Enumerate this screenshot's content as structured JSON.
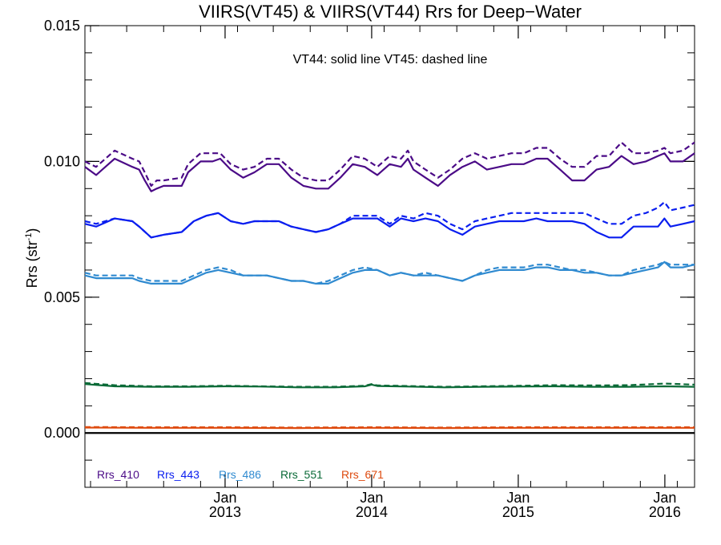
{
  "chart_data": {
    "type": "line",
    "title": "VIIRS(VT45) & VIIRS(VT44)  Rrs for Deep−Water",
    "ylabel": "Rrs (str",
    "ylabel_sup": "-1",
    "ylabel_close": ")",
    "annotation": "VT44: solid line   VT45: dashed line",
    "ylim": [
      -0.002,
      0.015
    ],
    "xlim": [
      "2012-01-18",
      "2016-03-15"
    ],
    "grid": false,
    "legend_position": "bottom-left",
    "y_ticks": [
      {
        "value": 0.0,
        "label": "0.000"
      },
      {
        "value": 0.005,
        "label": "0.005"
      },
      {
        "value": 0.01,
        "label": "0.010"
      },
      {
        "value": 0.015,
        "label": "0.015"
      }
    ],
    "y_minor_step": 0.001,
    "x_ticks": [
      {
        "date": "2013-01-01",
        "label": "Jan",
        "year": "2013"
      },
      {
        "date": "2014-01-01",
        "label": "Jan",
        "year": "2014"
      },
      {
        "date": "2015-01-01",
        "label": "Jan",
        "year": "2015"
      },
      {
        "date": "2016-01-01",
        "label": "Jan",
        "year": "2016"
      }
    ],
    "zero_line": 0.0,
    "series": [
      {
        "name": "Rrs_410",
        "color": "#4b0b87",
        "solid": {
          "x": [
            "2012-01-18",
            "2012-02-15",
            "2012-04-01",
            "2012-05-15",
            "2012-06-01",
            "2012-06-15",
            "2012-07-01",
            "2012-07-15",
            "2012-08-01",
            "2012-09-15",
            "2012-10-01",
            "2012-11-01",
            "2012-12-01",
            "2012-12-20",
            "2013-01-15",
            "2013-02-15",
            "2013-03-15",
            "2013-04-15",
            "2013-05-15",
            "2013-06-15",
            "2013-07-15",
            "2013-08-15",
            "2013-09-15",
            "2013-10-15",
            "2013-11-15",
            "2013-12-15",
            "2014-01-15",
            "2014-02-15",
            "2014-03-15",
            "2014-04-01",
            "2014-04-15",
            "2014-05-15",
            "2014-06-15",
            "2014-07-15",
            "2014-08-15",
            "2014-09-15",
            "2014-10-15",
            "2014-11-15",
            "2014-12-15",
            "2015-01-15",
            "2015-02-15",
            "2015-03-15",
            "2015-04-15",
            "2015-05-15",
            "2015-06-15",
            "2015-07-15",
            "2015-08-15",
            "2015-09-15",
            "2015-10-15",
            "2015-11-15",
            "2015-12-15",
            "2015-12-31",
            "2016-01-15",
            "2016-02-15",
            "2016-03-15"
          ],
          "y": [
            0.0098,
            0.0095,
            0.0101,
            0.0098,
            0.0097,
            0.0093,
            0.0089,
            0.009,
            0.0091,
            0.0091,
            0.0096,
            0.01,
            0.01,
            0.0101,
            0.0097,
            0.0094,
            0.0096,
            0.0099,
            0.0099,
            0.0094,
            0.0091,
            0.009,
            0.009,
            0.0094,
            0.0099,
            0.0098,
            0.0095,
            0.0099,
            0.0098,
            0.0101,
            0.0097,
            0.0094,
            0.0091,
            0.0095,
            0.0098,
            0.01,
            0.0097,
            0.0098,
            0.0099,
            0.0099,
            0.0101,
            0.0101,
            0.0097,
            0.0093,
            0.0093,
            0.0097,
            0.0098,
            0.0102,
            0.0099,
            0.01,
            0.0102,
            0.0103,
            0.01,
            0.01,
            0.0103
          ]
        },
        "dashed": {
          "x": [
            "2012-01-18",
            "2012-02-15",
            "2012-04-01",
            "2012-05-15",
            "2012-06-01",
            "2012-06-15",
            "2012-07-01",
            "2012-07-15",
            "2012-08-01",
            "2012-09-15",
            "2012-10-01",
            "2012-11-01",
            "2012-12-01",
            "2012-12-20",
            "2013-01-15",
            "2013-02-15",
            "2013-03-15",
            "2013-04-15",
            "2013-05-15",
            "2013-06-15",
            "2013-07-15",
            "2013-08-15",
            "2013-09-15",
            "2013-10-15",
            "2013-11-15",
            "2013-12-15",
            "2014-01-15",
            "2014-02-15",
            "2014-03-15",
            "2014-04-01",
            "2014-04-15",
            "2014-05-15",
            "2014-06-15",
            "2014-07-15",
            "2014-08-15",
            "2014-09-15",
            "2014-10-15",
            "2014-11-15",
            "2014-12-15",
            "2015-01-15",
            "2015-02-15",
            "2015-03-15",
            "2015-04-15",
            "2015-05-15",
            "2015-06-15",
            "2015-07-15",
            "2015-08-15",
            "2015-09-15",
            "2015-10-15",
            "2015-11-15",
            "2015-12-15",
            "2015-12-31",
            "2016-01-15",
            "2016-02-15",
            "2016-03-15"
          ],
          "y": [
            0.01,
            0.0098,
            0.0104,
            0.0101,
            0.01,
            0.0096,
            0.0091,
            0.0093,
            0.0093,
            0.0094,
            0.0099,
            0.0103,
            0.0103,
            0.0103,
            0.0099,
            0.0097,
            0.0098,
            0.0101,
            0.0101,
            0.0097,
            0.0094,
            0.0093,
            0.0093,
            0.0097,
            0.0102,
            0.0101,
            0.0098,
            0.0102,
            0.0101,
            0.0104,
            0.01,
            0.0097,
            0.0094,
            0.0097,
            0.0101,
            0.0103,
            0.0101,
            0.0102,
            0.0103,
            0.0103,
            0.0105,
            0.0105,
            0.0101,
            0.0098,
            0.0098,
            0.0102,
            0.0102,
            0.0107,
            0.0103,
            0.0103,
            0.0104,
            0.0105,
            0.0103,
            0.0104,
            0.0107
          ]
        }
      },
      {
        "name": "Rrs_443",
        "color": "#0a1eef",
        "solid": {
          "x": [
            "2012-01-18",
            "2012-02-15",
            "2012-04-01",
            "2012-05-15",
            "2012-06-01",
            "2012-07-01",
            "2012-08-01",
            "2012-09-15",
            "2012-10-15",
            "2012-11-15",
            "2012-12-15",
            "2013-01-15",
            "2013-02-15",
            "2013-03-15",
            "2013-04-15",
            "2013-05-15",
            "2013-06-15",
            "2013-07-15",
            "2013-08-15",
            "2013-09-15",
            "2013-10-15",
            "2013-11-15",
            "2013-12-15",
            "2014-01-15",
            "2014-02-15",
            "2014-03-15",
            "2014-04-15",
            "2014-05-15",
            "2014-06-15",
            "2014-07-15",
            "2014-08-15",
            "2014-09-15",
            "2014-10-15",
            "2014-11-15",
            "2014-12-15",
            "2015-01-15",
            "2015-02-15",
            "2015-03-15",
            "2015-04-15",
            "2015-05-15",
            "2015-06-15",
            "2015-07-15",
            "2015-08-15",
            "2015-09-15",
            "2015-10-15",
            "2015-11-15",
            "2015-12-15",
            "2015-12-31",
            "2016-01-15",
            "2016-02-15",
            "2016-03-15"
          ],
          "y": [
            0.0077,
            0.0076,
            0.0079,
            0.0078,
            0.0076,
            0.0072,
            0.0073,
            0.0074,
            0.0078,
            0.008,
            0.0081,
            0.0078,
            0.0077,
            0.0078,
            0.0078,
            0.0078,
            0.0076,
            0.0075,
            0.0074,
            0.0075,
            0.0077,
            0.0079,
            0.0079,
            0.0079,
            0.0076,
            0.0079,
            0.0078,
            0.0079,
            0.0078,
            0.0075,
            0.0073,
            0.0076,
            0.0077,
            0.0078,
            0.0078,
            0.0078,
            0.0079,
            0.0078,
            0.0078,
            0.0078,
            0.0077,
            0.0074,
            0.0072,
            0.0072,
            0.0076,
            0.0076,
            0.0076,
            0.0079,
            0.0076,
            0.0077,
            0.0078
          ]
        },
        "dashed": {
          "x": [
            "2012-01-18",
            "2012-02-15",
            "2012-04-01",
            "2012-05-15",
            "2012-06-01",
            "2012-07-01",
            "2012-08-01",
            "2012-09-15",
            "2012-10-15",
            "2012-11-15",
            "2012-12-15",
            "2013-01-15",
            "2013-02-15",
            "2013-03-15",
            "2013-04-15",
            "2013-05-15",
            "2013-06-15",
            "2013-07-15",
            "2013-08-15",
            "2013-09-15",
            "2013-10-15",
            "2013-11-15",
            "2013-12-15",
            "2014-01-15",
            "2014-02-15",
            "2014-03-15",
            "2014-04-15",
            "2014-05-15",
            "2014-06-15",
            "2014-07-15",
            "2014-08-15",
            "2014-09-15",
            "2014-10-15",
            "2014-11-15",
            "2014-12-15",
            "2015-01-15",
            "2015-02-15",
            "2015-03-15",
            "2015-04-15",
            "2015-05-15",
            "2015-06-15",
            "2015-07-15",
            "2015-08-15",
            "2015-09-15",
            "2015-10-15",
            "2015-11-15",
            "2015-12-15",
            "2015-12-31",
            "2016-01-15",
            "2016-02-15",
            "2016-03-15"
          ],
          "y": [
            0.0078,
            0.0077,
            0.0079,
            0.0078,
            0.0076,
            0.0072,
            0.0073,
            0.0074,
            0.0078,
            0.008,
            0.0081,
            0.0078,
            0.0077,
            0.0078,
            0.0078,
            0.0078,
            0.0076,
            0.0075,
            0.0074,
            0.0075,
            0.0077,
            0.008,
            0.008,
            0.008,
            0.0077,
            0.008,
            0.0079,
            0.0081,
            0.008,
            0.0077,
            0.0075,
            0.0078,
            0.0079,
            0.008,
            0.0081,
            0.0081,
            0.0081,
            0.0081,
            0.0081,
            0.0081,
            0.0081,
            0.0079,
            0.0077,
            0.0077,
            0.008,
            0.0081,
            0.0083,
            0.0085,
            0.0082,
            0.0083,
            0.0084
          ]
        }
      },
      {
        "name": "Rrs_486",
        "color": "#2f8ad0",
        "solid": {
          "x": [
            "2012-01-18",
            "2012-02-15",
            "2012-04-01",
            "2012-05-15",
            "2012-06-01",
            "2012-07-01",
            "2012-08-01",
            "2012-09-15",
            "2012-10-15",
            "2012-11-15",
            "2012-12-15",
            "2013-01-15",
            "2013-02-15",
            "2013-03-15",
            "2013-04-15",
            "2013-05-15",
            "2013-06-15",
            "2013-07-15",
            "2013-08-15",
            "2013-09-15",
            "2013-10-15",
            "2013-11-15",
            "2013-12-15",
            "2014-01-15",
            "2014-02-15",
            "2014-03-15",
            "2014-04-15",
            "2014-05-15",
            "2014-06-15",
            "2014-07-15",
            "2014-08-15",
            "2014-09-15",
            "2014-10-15",
            "2014-11-15",
            "2014-12-15",
            "2015-01-15",
            "2015-02-15",
            "2015-03-15",
            "2015-04-15",
            "2015-05-15",
            "2015-06-15",
            "2015-07-15",
            "2015-08-15",
            "2015-09-15",
            "2015-10-15",
            "2015-11-15",
            "2015-12-15",
            "2015-12-31",
            "2016-01-15",
            "2016-02-15",
            "2016-03-15"
          ],
          "y": [
            0.0058,
            0.0057,
            0.0057,
            0.0057,
            0.0056,
            0.0055,
            0.0055,
            0.0055,
            0.0057,
            0.0059,
            0.006,
            0.0059,
            0.0058,
            0.0058,
            0.0058,
            0.0057,
            0.0056,
            0.0056,
            0.0055,
            0.0055,
            0.0057,
            0.0059,
            0.006,
            0.006,
            0.0058,
            0.0059,
            0.0058,
            0.0058,
            0.0058,
            0.0057,
            0.0056,
            0.0058,
            0.0059,
            0.006,
            0.006,
            0.006,
            0.0061,
            0.0061,
            0.006,
            0.006,
            0.0059,
            0.0059,
            0.0058,
            0.0058,
            0.0059,
            0.006,
            0.0061,
            0.0063,
            0.0061,
            0.0061,
            0.0062
          ]
        },
        "dashed": {
          "x": [
            "2012-01-18",
            "2012-02-15",
            "2012-04-01",
            "2012-05-15",
            "2012-06-01",
            "2012-07-01",
            "2012-08-01",
            "2012-09-15",
            "2012-10-15",
            "2012-11-15",
            "2012-12-15",
            "2013-01-15",
            "2013-02-15",
            "2013-03-15",
            "2013-04-15",
            "2013-05-15",
            "2013-06-15",
            "2013-07-15",
            "2013-08-15",
            "2013-09-15",
            "2013-10-15",
            "2013-11-15",
            "2013-12-15",
            "2014-01-15",
            "2014-02-15",
            "2014-03-15",
            "2014-04-15",
            "2014-05-15",
            "2014-06-15",
            "2014-07-15",
            "2014-08-15",
            "2014-09-15",
            "2014-10-15",
            "2014-11-15",
            "2014-12-15",
            "2015-01-15",
            "2015-02-15",
            "2015-03-15",
            "2015-04-15",
            "2015-05-15",
            "2015-06-15",
            "2015-07-15",
            "2015-08-15",
            "2015-09-15",
            "2015-10-15",
            "2015-11-15",
            "2015-12-15",
            "2015-12-31",
            "2016-01-15",
            "2016-02-15",
            "2016-03-15"
          ],
          "y": [
            0.0059,
            0.0058,
            0.0058,
            0.0058,
            0.0057,
            0.0056,
            0.0056,
            0.0056,
            0.0058,
            0.006,
            0.0061,
            0.006,
            0.0058,
            0.0058,
            0.0058,
            0.0057,
            0.0056,
            0.0056,
            0.0055,
            0.0056,
            0.0058,
            0.006,
            0.0061,
            0.006,
            0.0058,
            0.0059,
            0.0058,
            0.0059,
            0.0058,
            0.0057,
            0.0056,
            0.0058,
            0.006,
            0.0061,
            0.0061,
            0.0061,
            0.0062,
            0.0062,
            0.0061,
            0.006,
            0.006,
            0.0059,
            0.0058,
            0.0058,
            0.006,
            0.0061,
            0.0062,
            0.0063,
            0.0062,
            0.0062,
            0.0062
          ]
        }
      },
      {
        "name": "Rrs_551",
        "color": "#0a6a37",
        "solid": {
          "x": [
            "2012-01-18",
            "2012-04-01",
            "2012-07-01",
            "2012-10-01",
            "2013-01-01",
            "2013-04-01",
            "2013-07-01",
            "2013-10-01",
            "2013-12-15",
            "2014-01-01",
            "2014-01-15",
            "2014-04-01",
            "2014-07-01",
            "2014-10-01",
            "2015-01-01",
            "2015-04-01",
            "2015-07-01",
            "2015-10-01",
            "2016-01-01",
            "2016-03-15"
          ],
          "y": [
            0.0018,
            0.00172,
            0.0017,
            0.0017,
            0.00172,
            0.00171,
            0.00168,
            0.00168,
            0.00172,
            0.00178,
            0.00173,
            0.00171,
            0.00168,
            0.0017,
            0.00171,
            0.00172,
            0.0017,
            0.0017,
            0.00172,
            0.0017
          ]
        },
        "dashed": {
          "x": [
            "2012-01-18",
            "2012-04-01",
            "2012-07-01",
            "2012-10-01",
            "2013-01-01",
            "2013-04-01",
            "2013-07-01",
            "2013-10-01",
            "2013-12-15",
            "2014-01-01",
            "2014-01-15",
            "2014-04-01",
            "2014-07-01",
            "2014-10-01",
            "2015-01-01",
            "2015-04-01",
            "2015-07-01",
            "2015-10-01",
            "2016-01-01",
            "2016-03-15"
          ],
          "y": [
            0.00184,
            0.00176,
            0.00172,
            0.00172,
            0.00174,
            0.00172,
            0.0017,
            0.0017,
            0.00174,
            0.0018,
            0.00175,
            0.00173,
            0.0017,
            0.00172,
            0.00174,
            0.00176,
            0.00175,
            0.00176,
            0.00182,
            0.00178
          ]
        }
      },
      {
        "name": "Rrs_671",
        "color": "#de4a0e",
        "solid": {
          "x": [
            "2012-01-18",
            "2012-07-01",
            "2013-01-01",
            "2013-07-01",
            "2014-01-01",
            "2014-07-01",
            "2015-01-01",
            "2015-07-01",
            "2016-01-01",
            "2016-03-15"
          ],
          "y": [
            0.0002,
            0.00019,
            0.00019,
            0.00018,
            0.00019,
            0.00018,
            0.00019,
            0.00019,
            0.00019,
            0.00019
          ]
        },
        "dashed": {
          "x": [
            "2012-01-18",
            "2012-07-01",
            "2013-01-01",
            "2013-07-01",
            "2014-01-01",
            "2014-07-01",
            "2015-01-01",
            "2015-07-01",
            "2016-01-01",
            "2016-03-15"
          ],
          "y": [
            0.00022,
            0.00021,
            0.00021,
            0.0002,
            0.00021,
            0.0002,
            0.00021,
            0.00021,
            0.00021,
            0.00021
          ]
        }
      }
    ]
  }
}
